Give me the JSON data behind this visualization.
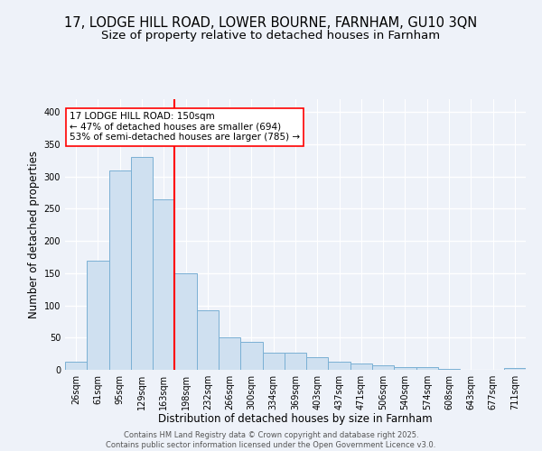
{
  "title1": "17, LODGE HILL ROAD, LOWER BOURNE, FARNHAM, GU10 3QN",
  "title2": "Size of property relative to detached houses in Farnham",
  "xlabel": "Distribution of detached houses by size in Farnham",
  "ylabel": "Number of detached properties",
  "bar_labels": [
    "26sqm",
    "61sqm",
    "95sqm",
    "129sqm",
    "163sqm",
    "198sqm",
    "232sqm",
    "266sqm",
    "300sqm",
    "334sqm",
    "369sqm",
    "403sqm",
    "437sqm",
    "471sqm",
    "506sqm",
    "540sqm",
    "574sqm",
    "608sqm",
    "643sqm",
    "677sqm",
    "711sqm"
  ],
  "bar_values": [
    12,
    170,
    310,
    330,
    265,
    150,
    93,
    50,
    44,
    27,
    27,
    20,
    12,
    10,
    7,
    4,
    4,
    1,
    0,
    0,
    3
  ],
  "bar_color": "#cfe0f0",
  "bar_edge_color": "#7ab0d4",
  "red_line_index": 4,
  "red_line_color": "red",
  "annotation_text": "17 LODGE HILL ROAD: 150sqm\n← 47% of detached houses are smaller (694)\n53% of semi-detached houses are larger (785) →",
  "annotation_box_color": "white",
  "annotation_box_edge": "red",
  "annotation_fontsize": 7.5,
  "ylim": [
    0,
    420
  ],
  "yticks": [
    0,
    50,
    100,
    150,
    200,
    250,
    300,
    350,
    400
  ],
  "title_fontsize": 10.5,
  "subtitle_fontsize": 9.5,
  "xlabel_fontsize": 8.5,
  "ylabel_fontsize": 8.5,
  "tick_fontsize": 7,
  "footer_text": "Contains HM Land Registry data © Crown copyright and database right 2025.\nContains public sector information licensed under the Open Government Licence v3.0.",
  "footer_fontsize": 6,
  "bg_color": "#eef2f9",
  "grid_color": "white"
}
